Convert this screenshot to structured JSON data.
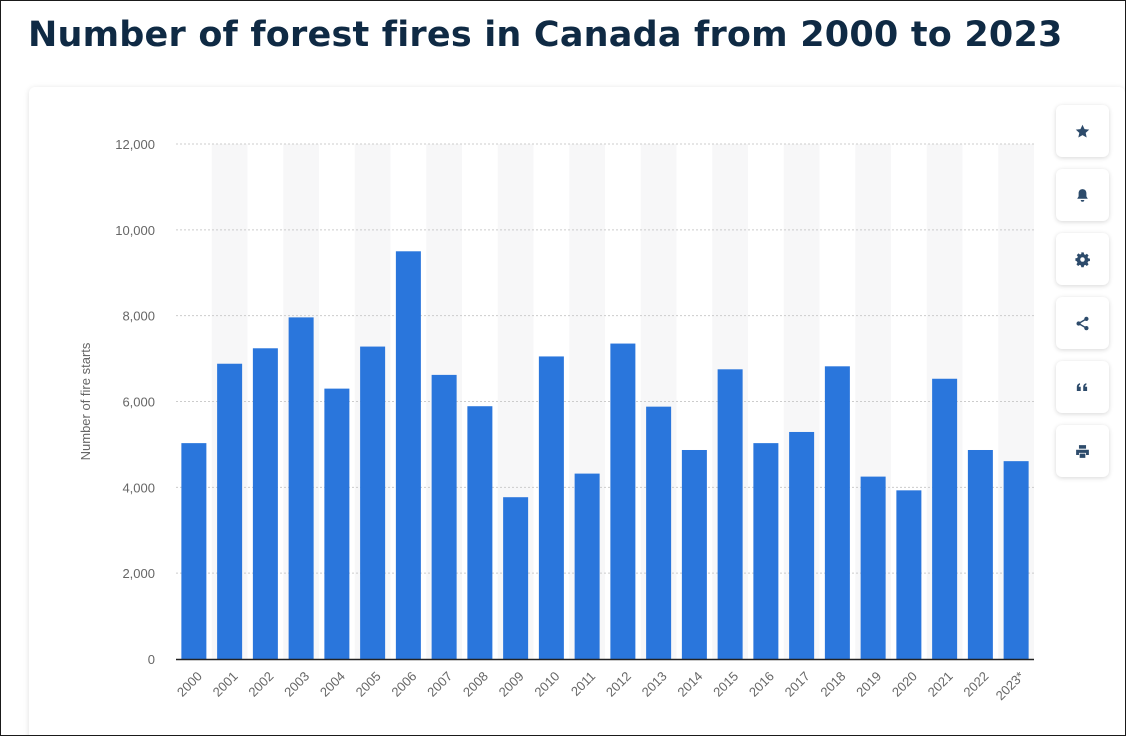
{
  "page": {
    "title": "Number of forest fires in Canada from 2000 to 2023"
  },
  "toolbar": {
    "buttons": [
      {
        "icon": "star-icon"
      },
      {
        "icon": "bell-icon"
      },
      {
        "icon": "gear-icon"
      },
      {
        "icon": "share-icon"
      },
      {
        "icon": "quote-icon"
      },
      {
        "icon": "print-icon"
      }
    ]
  },
  "colors": {
    "bar": "#2a76dc",
    "title": "#0f2a44",
    "icon": "#2d4b6b",
    "stripe": "#f7f7f8",
    "grid": "#cccccc",
    "axis_text": "#666666"
  },
  "chart_data": {
    "type": "bar",
    "title": "Number of forest fires in Canada from 2000 to 2023",
    "xlabel": "",
    "ylabel": "Number of fire starts",
    "categories": [
      "2000",
      "2001",
      "2002",
      "2003",
      "2004",
      "2005",
      "2006",
      "2007",
      "2008",
      "2009",
      "2010",
      "2011",
      "2012",
      "2013",
      "2014",
      "2015",
      "2016",
      "2017",
      "2018",
      "2019",
      "2020",
      "2021",
      "2022",
      "2023*"
    ],
    "values": [
      5030,
      6880,
      7240,
      7960,
      6300,
      7280,
      9500,
      6620,
      5890,
      3770,
      7050,
      4320,
      7350,
      5880,
      4870,
      6750,
      5030,
      5290,
      6820,
      4250,
      3930,
      6530,
      4870,
      4610
    ],
    "ylim": [
      0,
      12000
    ],
    "yticks": [
      0,
      2000,
      4000,
      6000,
      8000,
      10000,
      12000
    ],
    "ytick_labels": [
      "0",
      "2,000",
      "4,000",
      "6,000",
      "8,000",
      "10,000",
      "12,000"
    ],
    "grid": true,
    "legend": "none"
  }
}
